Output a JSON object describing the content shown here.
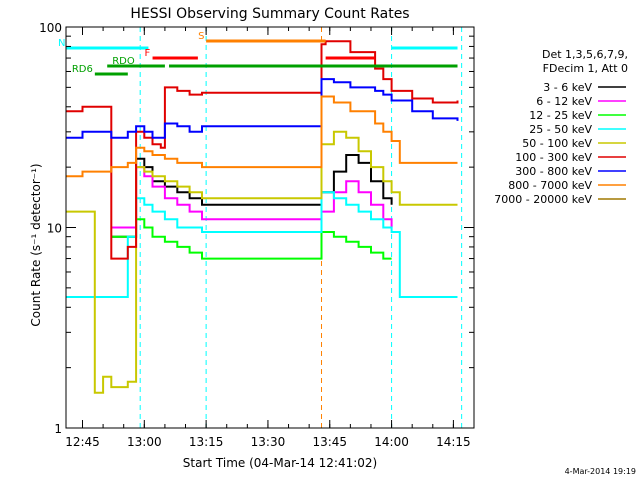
{
  "chart_data": {
    "type": "line",
    "title": "HESSI Observing Summary Count Rates",
    "xlabel": "Start Time (04-Mar-14 12:41:02)",
    "ylabel": "Count Rate (s⁻¹ detector⁻¹)",
    "y_scale": "log",
    "ylim": [
      1,
      100
    ],
    "xlim": [
      "12:41",
      "14:20"
    ],
    "x_ticks": [
      "12:45",
      "13:00",
      "13:15",
      "13:30",
      "13:45",
      "14:00",
      "14:15"
    ],
    "y_ticks": [
      "1",
      "10",
      "100"
    ],
    "grid": false,
    "legend_position": "right",
    "legend_header": [
      "Det 1,3,5,6,7,9,",
      "FDecim 1, Att 0"
    ],
    "timestamp": "4-Mar-2014 19:19",
    "flags": [
      {
        "label": "N",
        "color": "#00ffff",
        "segments": [
          [
            "12:41",
            "13:01"
          ],
          [
            "14:00",
            "14:16"
          ]
        ]
      },
      {
        "label": "S",
        "color": "#ff8000",
        "segments": [
          [
            "13:15",
            "13:44"
          ]
        ]
      },
      {
        "label": "F",
        "color": "#ff0000",
        "segments": [
          [
            "13:02",
            "13:13"
          ],
          [
            "13:44",
            "13:56"
          ]
        ]
      },
      {
        "label": "RDO",
        "color": "#00a000",
        "segments": [
          [
            "12:51",
            "13:05"
          ],
          [
            "13:06",
            "14:16"
          ]
        ]
      },
      {
        "label": "RD6",
        "color": "#00a000",
        "segments": [
          [
            "12:48",
            "12:56"
          ]
        ]
      }
    ],
    "dashed_lines": [
      {
        "color": "#00ffff",
        "x": [
          "12:59",
          "13:15",
          "14:00",
          "14:17"
        ]
      },
      {
        "color": "#ff8000",
        "x": [
          "13:43"
        ]
      }
    ],
    "series": [
      {
        "name": "3 - 6 keV",
        "color": "#000000",
        "x": [
          "12:52",
          "12:56",
          "12:58",
          "13:00",
          "13:02",
          "13:05",
          "13:08",
          "13:11",
          "13:14",
          "13:43",
          "13:46",
          "13:49",
          "13:52",
          "13:55",
          "13:58",
          "14:00"
        ],
        "values": [
          9,
          9,
          22,
          20,
          17,
          16,
          15,
          14,
          13,
          15,
          19,
          23,
          21,
          17,
          14,
          13
        ]
      },
      {
        "name": "6 - 12 keV",
        "color": "#ff00ff",
        "x": [
          "12:52",
          "12:56",
          "12:58",
          "13:00",
          "13:02",
          "13:05",
          "13:08",
          "13:11",
          "13:14",
          "13:43",
          "13:46",
          "13:49",
          "13:52",
          "13:55",
          "13:58",
          "14:00"
        ],
        "values": [
          10,
          10,
          20,
          18,
          16,
          14,
          13,
          12,
          11,
          12,
          15,
          17,
          15,
          13,
          11,
          10
        ]
      },
      {
        "name": "12 - 25 keV",
        "color": "#00ff00",
        "x": [
          "12:52",
          "12:56",
          "12:58",
          "13:00",
          "13:02",
          "13:05",
          "13:08",
          "13:11",
          "13:14",
          "13:43",
          "13:46",
          "13:49",
          "13:52",
          "13:55",
          "13:58",
          "14:00"
        ],
        "values": [
          9,
          9,
          11,
          10,
          9,
          8.5,
          8,
          7.5,
          7,
          9.5,
          9,
          8.5,
          8,
          7.5,
          7,
          7
        ]
      },
      {
        "name": "25 - 50 keV",
        "color": "#00ffff",
        "x": [
          "12:41",
          "12:45",
          "12:47",
          "12:56",
          "12:58",
          "13:00",
          "13:02",
          "13:05",
          "13:08",
          "13:11",
          "13:14",
          "13:43",
          "13:46",
          "13:49",
          "13:52",
          "13:55",
          "13:58",
          "14:00",
          "14:02",
          "14:09",
          "14:16"
        ],
        "values": [
          4.5,
          4.5,
          4.5,
          9,
          14,
          13,
          12,
          11,
          10,
          10,
          9.5,
          15,
          14,
          13,
          12,
          11,
          10,
          9.5,
          4.5,
          4.5,
          4.5
        ]
      },
      {
        "name": "50 - 100 keV",
        "color": "#c8c800",
        "x": [
          "12:41",
          "12:45",
          "12:47",
          "12:48",
          "12:50",
          "12:52",
          "12:56",
          "12:58",
          "13:00",
          "13:02",
          "13:05",
          "13:08",
          "13:11",
          "13:14",
          "13:43",
          "13:46",
          "13:49",
          "13:52",
          "13:55",
          "13:58",
          "14:00",
          "14:02",
          "14:09",
          "14:16"
        ],
        "values": [
          12,
          12,
          12,
          1.5,
          1.8,
          1.6,
          1.7,
          20,
          19,
          18,
          17,
          16,
          15,
          14,
          26,
          30,
          28,
          24,
          20,
          17,
          15,
          13,
          13,
          13
        ]
      },
      {
        "name": "100 - 300 keV",
        "color": "#e00000",
        "x": [
          "12:41",
          "12:45",
          "12:47",
          "12:52",
          "12:56",
          "12:58",
          "13:00",
          "13:02",
          "13:04",
          "13:05",
          "13:08",
          "13:11",
          "13:14",
          "13:43",
          "13:44",
          "13:50",
          "13:56",
          "13:58",
          "14:00",
          "14:05",
          "14:10",
          "14:16"
        ],
        "values": [
          38,
          40,
          40,
          7,
          8,
          30,
          28,
          26,
          25,
          50,
          48,
          46,
          47,
          82,
          85,
          75,
          62,
          55,
          48,
          44,
          42,
          43
        ]
      },
      {
        "name": "300 - 800 keV",
        "color": "#0000ff",
        "x": [
          "12:41",
          "12:45",
          "12:47",
          "12:52",
          "12:56",
          "12:58",
          "13:00",
          "13:02",
          "13:05",
          "13:08",
          "13:11",
          "13:14",
          "13:43",
          "13:46",
          "13:50",
          "13:56",
          "13:58",
          "14:00",
          "14:05",
          "14:10",
          "14:16"
        ],
        "values": [
          28,
          30,
          30,
          28,
          30,
          32,
          30,
          28,
          33,
          32,
          30,
          32,
          55,
          53,
          50,
          48,
          46,
          43,
          38,
          35,
          34
        ]
      },
      {
        "name": "800 - 7000 keV",
        "color": "#ff8000",
        "x": [
          "12:41",
          "12:45",
          "12:47",
          "12:52",
          "12:56",
          "12:58",
          "13:00",
          "13:02",
          "13:05",
          "13:08",
          "13:11",
          "13:14",
          "13:43",
          "13:46",
          "13:50",
          "13:56",
          "13:58",
          "14:00",
          "14:02",
          "14:09",
          "14:16"
        ],
        "values": [
          18,
          19,
          19,
          20,
          21,
          25,
          24,
          23,
          22,
          21,
          21,
          20,
          45,
          42,
          38,
          33,
          30,
          27,
          21,
          21,
          21
        ]
      },
      {
        "name": "7000 - 20000 keV",
        "color": "#a07800",
        "x": [],
        "values": []
      }
    ]
  }
}
